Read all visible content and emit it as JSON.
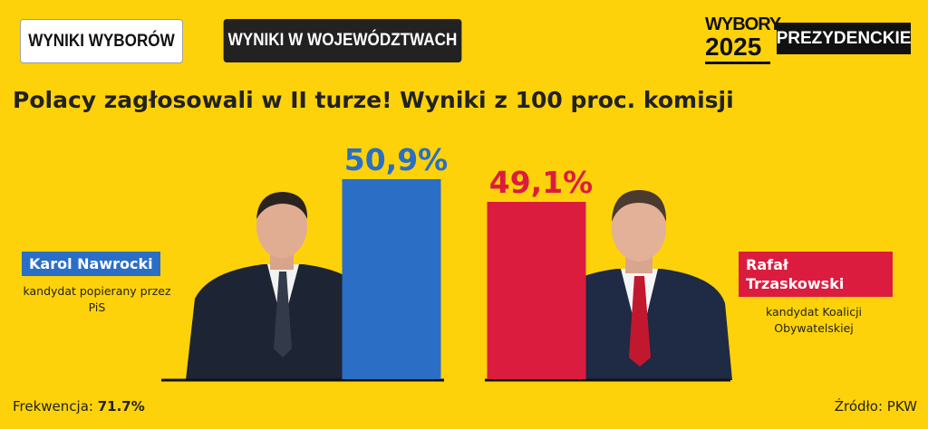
{
  "tabs": [
    "WYNIKI WYBORÓW",
    "WYNIKI W WOJEWÓDZTWACH"
  ],
  "logo": {
    "top": "WYBORY",
    "year": "2025",
    "badge": "PREZYDENCKIE"
  },
  "chart_data": {
    "type": "bar",
    "title": "Polacy zagłosowali w II turze! Wyniki z 100 proc. komisji",
    "categories": [
      "Karol Nawrocki",
      "Rafał Trzaskowski"
    ],
    "descriptions": [
      "kandydat popierany przez PiS",
      "kandydat Koalicji Obywatelskiej"
    ],
    "values": [
      50.9,
      49.1
    ],
    "value_labels": [
      "50,9%",
      "49,1%"
    ],
    "colors": [
      "#2a6ec6",
      "#dc1c3e"
    ],
    "ylim": [
      35,
      55
    ]
  },
  "footer": {
    "turnout_label": "Frekwencja:",
    "turnout": "71.7%",
    "source": "Źródło: PKW"
  }
}
